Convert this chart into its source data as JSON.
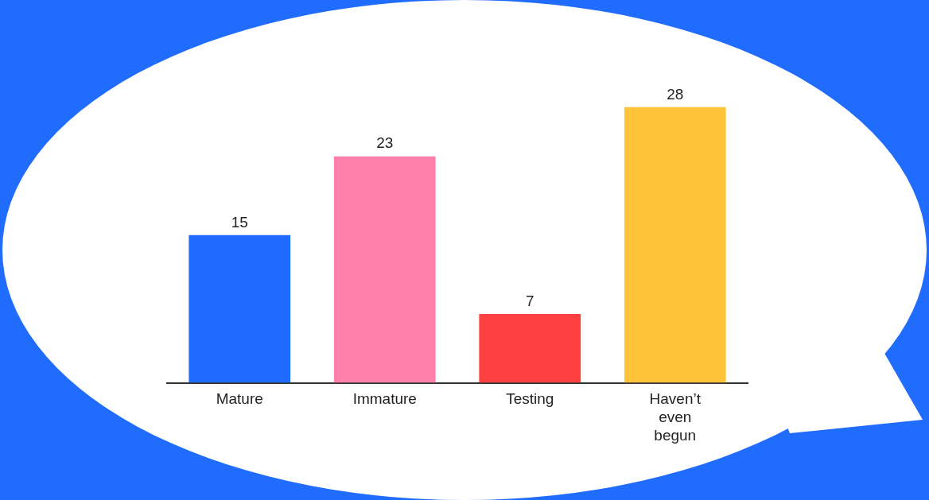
{
  "chart_data": {
    "type": "bar",
    "categories": [
      "Mature",
      "Immature",
      "Testing",
      "Haven’t even begun"
    ],
    "values": [
      15,
      23,
      7,
      28
    ],
    "colors": [
      "#1f6bff",
      "#ff80ab",
      "#ff4040",
      "#ffc33a"
    ],
    "data_labels": true,
    "grid": false,
    "legend": false
  }
}
